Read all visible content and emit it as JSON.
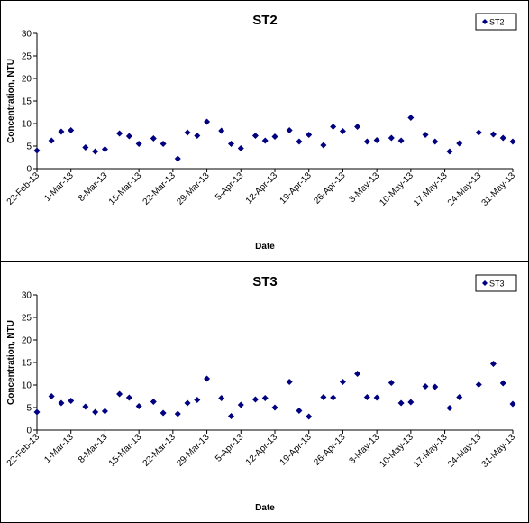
{
  "chart_data": [
    {
      "type": "scatter",
      "title": "ST2",
      "xlabel": "Date",
      "ylabel": "Concentration, NTU",
      "legend": "upper right",
      "grid": false,
      "xlim": [
        "2013-02-22",
        "2013-05-31"
      ],
      "xticks": [
        {
          "value": "2013-02-22",
          "label": "22-Feb-13"
        },
        {
          "value": "2013-03-01",
          "label": "1-Mar-13"
        },
        {
          "value": "2013-03-08",
          "label": "8-Mar-13"
        },
        {
          "value": "2013-03-15",
          "label": "15-Mar-13"
        },
        {
          "value": "2013-03-22",
          "label": "22-Mar-13"
        },
        {
          "value": "2013-03-29",
          "label": "29-Mar-13"
        },
        {
          "value": "2013-04-05",
          "label": "5-Apr-13"
        },
        {
          "value": "2013-04-12",
          "label": "12-Apr-13"
        },
        {
          "value": "2013-04-19",
          "label": "19-Apr-13"
        },
        {
          "value": "2013-04-26",
          "label": "26-Apr-13"
        },
        {
          "value": "2013-05-03",
          "label": "3-May-13"
        },
        {
          "value": "2013-05-10",
          "label": "10-May-13"
        },
        {
          "value": "2013-05-17",
          "label": "17-May-13"
        },
        {
          "value": "2013-05-24",
          "label": "24-May-13"
        },
        {
          "value": "2013-05-31",
          "label": "31-May-13"
        }
      ],
      "ylim": [
        0,
        30
      ],
      "yticks": [
        0,
        5,
        10,
        15,
        20,
        25,
        30
      ],
      "x": [
        "2013-02-22",
        "2013-02-25",
        "2013-02-27",
        "2013-03-01",
        "2013-03-04",
        "2013-03-06",
        "2013-03-08",
        "2013-03-11",
        "2013-03-13",
        "2013-03-15",
        "2013-03-18",
        "2013-03-20",
        "2013-03-23",
        "2013-03-25",
        "2013-03-27",
        "2013-03-29",
        "2013-04-01",
        "2013-04-03",
        "2013-04-05",
        "2013-04-08",
        "2013-04-10",
        "2013-04-12",
        "2013-04-15",
        "2013-04-17",
        "2013-04-19",
        "2013-04-22",
        "2013-04-24",
        "2013-04-26",
        "2013-04-29",
        "2013-05-01",
        "2013-05-03",
        "2013-05-06",
        "2013-05-08",
        "2013-05-10",
        "2013-05-13",
        "2013-05-15",
        "2013-05-18",
        "2013-05-20",
        "2013-05-24",
        "2013-05-27",
        "2013-05-29",
        "2013-05-31"
      ],
      "series": [
        {
          "name": "ST2",
          "color": "#000080",
          "values": [
            4,
            6.2,
            8.2,
            8.5,
            4.7,
            3.8,
            4.3,
            7.8,
            7.2,
            5.5,
            6.7,
            5.5,
            2.2,
            8,
            7.3,
            10.4,
            8.4,
            5.5,
            4.5,
            7.3,
            6.2,
            7.1,
            8.5,
            6,
            7.5,
            5.2,
            9.3,
            8.3,
            9.3,
            6,
            6.3,
            6.8,
            6.2,
            11.3,
            7.5,
            6,
            3.8,
            5.6,
            8,
            7.6,
            6.8,
            6
          ]
        }
      ]
    },
    {
      "type": "scatter",
      "title": "ST3",
      "xlabel": "Date",
      "ylabel": "Concentration, NTU",
      "legend": "upper right",
      "grid": false,
      "xlim": [
        "2013-02-22",
        "2013-05-31"
      ],
      "xticks": [
        {
          "value": "2013-02-22",
          "label": "22-Feb-13"
        },
        {
          "value": "2013-03-01",
          "label": "1-Mar-13"
        },
        {
          "value": "2013-03-08",
          "label": "8-Mar-13"
        },
        {
          "value": "2013-03-15",
          "label": "15-Mar-13"
        },
        {
          "value": "2013-03-22",
          "label": "22-Mar-13"
        },
        {
          "value": "2013-03-29",
          "label": "29-Mar-13"
        },
        {
          "value": "2013-04-05",
          "label": "5-Apr-13"
        },
        {
          "value": "2013-04-12",
          "label": "12-Apr-13"
        },
        {
          "value": "2013-04-19",
          "label": "19-Apr-13"
        },
        {
          "value": "2013-04-26",
          "label": "26-Apr-13"
        },
        {
          "value": "2013-05-03",
          "label": "3-May-13"
        },
        {
          "value": "2013-05-10",
          "label": "10-May-13"
        },
        {
          "value": "2013-05-17",
          "label": "17-May-13"
        },
        {
          "value": "2013-05-24",
          "label": "24-May-13"
        },
        {
          "value": "2013-05-31",
          "label": "31-May-13"
        }
      ],
      "ylim": [
        0,
        30
      ],
      "yticks": [
        0,
        5,
        10,
        15,
        20,
        25,
        30
      ],
      "x": [
        "2013-02-22",
        "2013-02-25",
        "2013-02-27",
        "2013-03-01",
        "2013-03-04",
        "2013-03-06",
        "2013-03-08",
        "2013-03-11",
        "2013-03-13",
        "2013-03-15",
        "2013-03-18",
        "2013-03-20",
        "2013-03-23",
        "2013-03-25",
        "2013-03-27",
        "2013-03-29",
        "2013-04-01",
        "2013-04-03",
        "2013-04-05",
        "2013-04-08",
        "2013-04-10",
        "2013-04-12",
        "2013-04-15",
        "2013-04-17",
        "2013-04-19",
        "2013-04-22",
        "2013-04-24",
        "2013-04-26",
        "2013-04-29",
        "2013-05-01",
        "2013-05-03",
        "2013-05-06",
        "2013-05-08",
        "2013-05-10",
        "2013-05-13",
        "2013-05-15",
        "2013-05-18",
        "2013-05-20",
        "2013-05-24",
        "2013-05-27",
        "2013-05-29",
        "2013-05-31"
      ],
      "series": [
        {
          "name": "ST3",
          "color": "#000080",
          "values": [
            4,
            7.5,
            6,
            6.5,
            5.2,
            4,
            4.2,
            8,
            7.2,
            5.3,
            6.3,
            3.8,
            3.6,
            6,
            6.7,
            11.4,
            7.1,
            3.1,
            5.6,
            6.8,
            7.1,
            5,
            10.7,
            4.3,
            3,
            7.3,
            7.2,
            10.7,
            12.5,
            7.3,
            7.2,
            10.5,
            6,
            6.2,
            9.7,
            9.6,
            4.9,
            7.3,
            10.1,
            14.7,
            10.4,
            5.8
          ]
        }
      ]
    }
  ]
}
